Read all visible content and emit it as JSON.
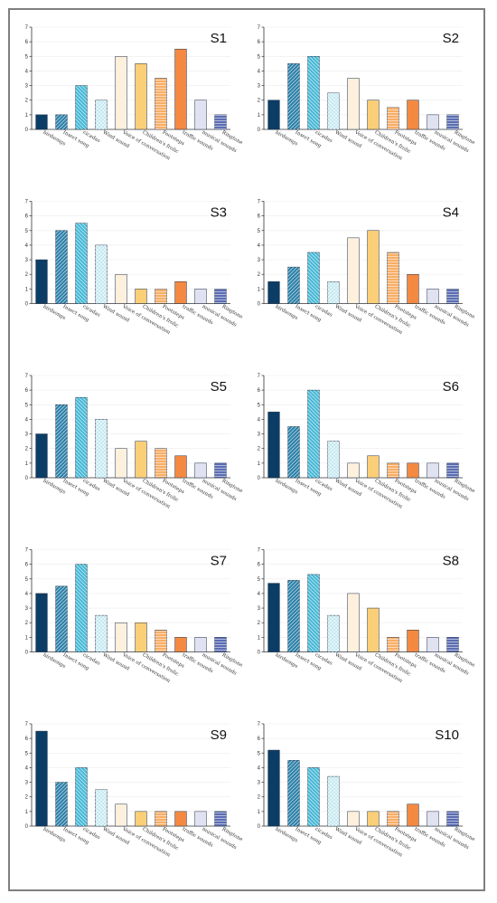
{
  "categories": [
    "birdsongs",
    "Insect song",
    "cicadas",
    "Wind sound",
    "Voice of conversation",
    "Children's frolic",
    "Footsteps",
    "traffic sounds",
    "musical sounds",
    "Ringtone"
  ],
  "yticks": [
    0,
    1,
    2,
    3,
    4,
    5,
    6,
    7
  ],
  "bar_styles": [
    {
      "fill": "#0b3d66",
      "pattern": "none"
    },
    {
      "fill": "#2a7fa8",
      "pattern": "diag-up"
    },
    {
      "fill": "#45b8d6",
      "pattern": "diag-down"
    },
    {
      "fill": "#bfe7ef",
      "pattern": "cross"
    },
    {
      "fill": "#fdf0dc",
      "pattern": "none"
    },
    {
      "fill": "#fbcf78",
      "pattern": "none"
    },
    {
      "fill": "#f8ae66",
      "pattern": "hlines"
    },
    {
      "fill": "#f48a42",
      "pattern": "none"
    },
    {
      "fill": "#e1e2f1",
      "pattern": "none"
    },
    {
      "fill": "#5b6db3",
      "pattern": "hlines"
    }
  ],
  "chart_data": [
    {
      "type": "bar",
      "title": "S1",
      "categories": [
        "birdsongs",
        "Insect song",
        "cicadas",
        "Wind sound",
        "Voice of conversation",
        "Children's frolic",
        "Footsteps",
        "traffic sounds",
        "musical sounds",
        "Ringtone"
      ],
      "values": [
        1,
        1,
        3,
        2,
        5,
        4.5,
        3.5,
        5.5,
        2,
        1
      ],
      "ylim": [
        0,
        7
      ]
    },
    {
      "type": "bar",
      "title": "S2",
      "categories": [
        "birdsongs",
        "Insect song",
        "cicadas",
        "Wind sound",
        "Voice of conversation",
        "Children's frolic",
        "Footsteps",
        "traffic sounds",
        "musical sounds",
        "Ringtone"
      ],
      "values": [
        2,
        4.5,
        5,
        2.5,
        3.5,
        2,
        1.5,
        2,
        1,
        1
      ],
      "ylim": [
        0,
        7
      ]
    },
    {
      "type": "bar",
      "title": "S3",
      "categories": [
        "birdsongs",
        "Insect song",
        "cicadas",
        "Wind sound",
        "Voice of conversation",
        "Children's frolic",
        "Footsteps",
        "traffic sounds",
        "musical sounds",
        "Ringtone"
      ],
      "values": [
        3,
        5,
        5.5,
        4,
        2,
        1,
        1,
        1.5,
        1,
        1
      ],
      "ylim": [
        0,
        7
      ]
    },
    {
      "type": "bar",
      "title": "S4",
      "categories": [
        "birdsongs",
        "Insect song",
        "cicadas",
        "Wind sound",
        "Voice of conversation",
        "Children's frolic",
        "Footsteps",
        "traffic sounds",
        "musical sounds",
        "Ringtone"
      ],
      "values": [
        1.5,
        2.5,
        3.5,
        1.5,
        4.5,
        5,
        3.5,
        2,
        1,
        1
      ],
      "ylim": [
        0,
        7
      ]
    },
    {
      "type": "bar",
      "title": "S5",
      "categories": [
        "birdsongs",
        "Insect song",
        "cicadas",
        "Wind sound",
        "Voice of conversation",
        "Children's frolic",
        "Footsteps",
        "traffic sounds",
        "musical sounds",
        "Ringtone"
      ],
      "values": [
        3,
        5,
        5.5,
        4,
        2,
        2.5,
        2,
        1.5,
        1,
        1
      ],
      "ylim": [
        0,
        7
      ]
    },
    {
      "type": "bar",
      "title": "S6",
      "categories": [
        "birdsongs",
        "Insect song",
        "cicadas",
        "Wind sound",
        "Voice of conversation",
        "Children's frolic",
        "Footsteps",
        "traffic sounds",
        "musical sounds",
        "Ringtone"
      ],
      "values": [
        4.5,
        3.5,
        6,
        2.5,
        1,
        1.5,
        1,
        1,
        1,
        1
      ],
      "ylim": [
        0,
        7
      ]
    },
    {
      "type": "bar",
      "title": "S7",
      "categories": [
        "birdsongs",
        "Insect song",
        "cicadas",
        "Wind sound",
        "Voice of conversation",
        "Children's frolic",
        "Footsteps",
        "traffic sounds",
        "musical sounds",
        "Ringtone"
      ],
      "values": [
        4,
        4.5,
        6,
        2.5,
        2,
        2,
        1.5,
        1,
        1,
        1
      ],
      "ylim": [
        0,
        7
      ]
    },
    {
      "type": "bar",
      "title": "S8",
      "categories": [
        "birdsongs",
        "Insect song",
        "cicadas",
        "Wind sound",
        "Voice of conversation",
        "Children's frolic",
        "Footsteps",
        "traffic sounds",
        "musical sounds",
        "Ringtone"
      ],
      "values": [
        4.7,
        4.9,
        5.3,
        2.5,
        4,
        3,
        1,
        1.5,
        1,
        1
      ],
      "ylim": [
        0,
        7
      ]
    },
    {
      "type": "bar",
      "title": "S9",
      "categories": [
        "birdsongs",
        "Insect song",
        "cicadas",
        "Wind sound",
        "Voice of conversation",
        "Children's frolic",
        "Footsteps",
        "traffic sounds",
        "musical sounds",
        "Ringtone"
      ],
      "values": [
        6.5,
        3,
        4,
        2.5,
        1.5,
        1,
        1,
        1,
        1,
        1
      ],
      "ylim": [
        0,
        7
      ]
    },
    {
      "type": "bar",
      "title": "S10",
      "categories": [
        "birdsongs",
        "Insect song",
        "cicadas",
        "Wind sound",
        "Voice of conversation",
        "Children's frolic",
        "Footsteps",
        "traffic sounds",
        "musical sounds",
        "Ringtone"
      ],
      "values": [
        5.2,
        4.5,
        4,
        3.4,
        1,
        1,
        1,
        1.5,
        1,
        1
      ],
      "ylim": [
        0,
        7
      ]
    }
  ]
}
